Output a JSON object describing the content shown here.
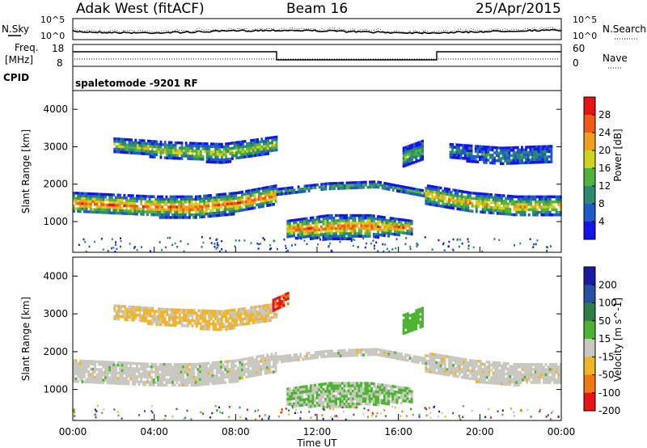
{
  "header": {
    "station": "Adak West (fitACF)",
    "beam": "Beam 16",
    "date": "25/Apr/2015"
  },
  "strip_labels": {
    "nsky": "N.Sky",
    "nsky_hi": "10^5",
    "nsky_lo": "10^0",
    "nsearch": "N.Search",
    "nsearch_hi": "10^5",
    "nsearch_lo": "10^0",
    "freq": "Freq.",
    "freq_unit": "[MHz]",
    "freq_hi": "18",
    "freq_lo": "8",
    "nave": "Nave",
    "nave_hi": "60",
    "nave_lo": "0",
    "cpid": "CPID",
    "mode": "spaletomode -9201 RF"
  },
  "chart_data": [
    {
      "type": "heatmap",
      "name": "power",
      "ylabel": "Slant Range [km]",
      "yticks": [
        "1000",
        "2000",
        "3000",
        "4000"
      ],
      "ylim": [
        180,
        4500
      ],
      "xlim": [
        0,
        24
      ],
      "colorbar_label": "Power [dB]",
      "colorbar_ticks": [
        "4",
        "8",
        "12",
        "16",
        "20",
        "24",
        "28"
      ],
      "colorbar_range": [
        0,
        32
      ],
      "colorscale": [
        "#1414e6",
        "#1e5ac8",
        "#2d8a6e",
        "#50b43c",
        "#d2d21e",
        "#f0a01e",
        "#f05a14",
        "#e61414"
      ],
      "echo_bands": [
        {
          "x": [
            0,
            10
          ],
          "range_lo": [
            1250,
            1200,
            1150,
            1100,
            1250,
            1500
          ],
          "range_hi": [
            1800,
            1750,
            1700,
            1700,
            1800,
            2000
          ],
          "peak_db": 28
        },
        {
          "x": [
            10,
            17.3
          ],
          "range_lo": [
            1750,
            1850,
            1900,
            1700
          ],
          "range_hi": [
            1900,
            2050,
            2100,
            1850
          ],
          "peak_db": 14
        },
        {
          "x": [
            17.3,
            24
          ],
          "range_lo": [
            1500,
            1250,
            1150,
            1200
          ],
          "range_hi": [
            2000,
            1800,
            1700,
            1700
          ],
          "peak_db": 24
        },
        {
          "x": [
            10.5,
            16.6
          ],
          "range_lo": [
            600,
            550,
            600,
            700
          ],
          "range_hi": [
            1050,
            1200,
            1200,
            1050
          ],
          "peak_db": 26
        },
        {
          "x": [
            2,
            10
          ],
          "range_lo": [
            2900,
            2700,
            2600,
            2900
          ],
          "range_hi": [
            3250,
            3150,
            3100,
            3300
          ],
          "peak_db": 18
        },
        {
          "x": [
            16.2,
            17.2
          ],
          "range_lo": [
            2500,
            2700
          ],
          "range_hi": [
            3000,
            3200
          ],
          "peak_db": 12
        },
        {
          "x": [
            18.5,
            23.5
          ],
          "range_lo": [
            2700,
            2550,
            2600
          ],
          "range_hi": [
            3100,
            3000,
            3050
          ],
          "peak_db": 10
        }
      ]
    },
    {
      "type": "heatmap",
      "name": "velocity",
      "ylabel": "Slant Range [km]",
      "yticks": [
        "1000",
        "2000",
        "3000",
        "4000"
      ],
      "ylim": [
        180,
        4500
      ],
      "xlim": [
        0,
        24
      ],
      "xlabel": "Time UT",
      "xticks": [
        "00:00",
        "04:00",
        "08:00",
        "12:00",
        "16:00",
        "20:00",
        "00:00"
      ],
      "colorbar_label": "Velocity [m s^-1]",
      "colorbar_ticks": [
        "200",
        "100",
        "50",
        "15",
        "-15",
        "-50",
        "-100",
        "-200"
      ],
      "colorscale": [
        "#1a1aa0",
        "#2850a0",
        "#2e7d4b",
        "#4cb432",
        "#c8c8c0",
        "#f0b428",
        "#f07814",
        "#e61414"
      ],
      "echo_bands": [
        {
          "x": [
            0,
            10
          ],
          "range_lo": [
            1250,
            1200,
            1150,
            1100,
            1250,
            1500
          ],
          "range_hi": [
            1800,
            1750,
            1700,
            1700,
            1800,
            2000
          ],
          "velocity": 0
        },
        {
          "x": [
            10,
            17.3
          ],
          "range_lo": [
            1750,
            1850,
            1900,
            1700
          ],
          "range_hi": [
            1900,
            2050,
            2100,
            1850
          ],
          "velocity": 0
        },
        {
          "x": [
            17.3,
            24
          ],
          "range_lo": [
            1500,
            1250,
            1150,
            1200
          ],
          "range_hi": [
            2000,
            1800,
            1700,
            1700
          ],
          "velocity": 0
        },
        {
          "x": [
            10.5,
            16.6
          ],
          "range_lo": [
            600,
            550,
            600,
            700
          ],
          "range_hi": [
            1050,
            1200,
            1200,
            1050
          ],
          "velocity": 20
        },
        {
          "x": [
            2,
            10
          ],
          "range_lo": [
            2900,
            2700,
            2600,
            2900
          ],
          "range_hi": [
            3250,
            3150,
            3100,
            3300
          ],
          "velocity": -20
        },
        {
          "x": [
            9.8,
            10.6
          ],
          "range_lo": [
            3100,
            3300
          ],
          "range_hi": [
            3400,
            3600
          ],
          "velocity": -180
        },
        {
          "x": [
            16.2,
            17.2
          ],
          "range_lo": [
            2500,
            2700
          ],
          "range_hi": [
            3000,
            3200
          ],
          "velocity": 50
        }
      ]
    }
  ]
}
